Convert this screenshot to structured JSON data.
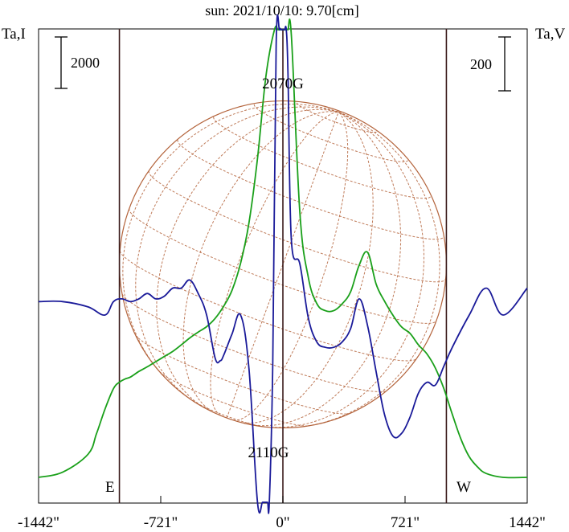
{
  "chart_data": {
    "type": "line",
    "title": "sun: 2021/10/10: 9.70[cm]",
    "y_left_label": "Ta,I",
    "y_right_label": "Ta,V",
    "x_ticks": [
      "-1442\"",
      "-721\"",
      "0\"",
      "721\"",
      "1442\""
    ],
    "x_tick_values": [
      -1442,
      -721,
      0,
      721,
      1442
    ],
    "xlim": [
      -1442,
      1442
    ],
    "scale_left_label": "2000",
    "scale_right_label": "200",
    "limb_labels": {
      "east": "E",
      "west": "W"
    },
    "limb_positions": [
      -965,
      965
    ],
    "annotations": [
      {
        "text": "2070G",
        "x": 10
      },
      {
        "text": "2110G",
        "x": -80
      }
    ],
    "disk": {
      "center_x": 0,
      "radius": 965
    },
    "colors": {
      "stokes_i": "#1aa01a",
      "stokes_v": "#1a1a99",
      "disk": "#b4643c",
      "limb_lines": "#3a1a1a",
      "title": "#1a1a80"
    },
    "series": [
      {
        "key": "stokes_i",
        "x": [
          -1442,
          -1300,
          -1150,
          -1100,
          -1050,
          -1000,
          -965,
          -930,
          -900,
          -850,
          -800,
          -750,
          -700,
          -650,
          -600,
          -550,
          -500,
          -450,
          -400,
          -350,
          -300,
          -250,
          -200,
          -150,
          -100,
          -50,
          -30,
          -20,
          -10,
          0,
          10,
          20,
          30,
          50,
          100,
          150,
          200,
          250,
          300,
          350,
          400,
          450,
          500,
          550,
          600,
          650,
          700,
          750,
          800,
          850,
          900,
          950,
          1000,
          1050,
          1100,
          1150,
          1200,
          1300,
          1442
        ],
        "y": [
          0,
          200,
          900,
          1700,
          2650,
          3450,
          3700,
          3830,
          3900,
          4120,
          4300,
          4500,
          4700,
          4900,
          5150,
          5420,
          5650,
          5860,
          6180,
          6650,
          7280,
          8320,
          9900,
          12400,
          15600,
          20500,
          25300,
          29000,
          30200,
          30300,
          29700,
          27000,
          23800,
          17200,
          10300,
          7780,
          6760,
          6480,
          6480,
          6750,
          7220,
          8250,
          8750,
          7520,
          6850,
          6300,
          5850,
          5600,
          5150,
          4800,
          4250,
          3450,
          2450,
          1500,
          800,
          400,
          150,
          0,
          0
        ]
      },
      {
        "key": "stokes_v",
        "x": [
          -1442,
          -1300,
          -1150,
          -1050,
          -1000,
          -950,
          -900,
          -850,
          -800,
          -750,
          -700,
          -650,
          -600,
          -550,
          -500,
          -450,
          -400,
          -370,
          -350,
          -300,
          -250,
          -200,
          -150,
          -120,
          -100,
          -90,
          -80,
          -60,
          -40,
          -20,
          -10,
          0,
          10,
          20,
          30,
          50,
          100,
          150,
          200,
          250,
          300,
          350,
          400,
          450,
          500,
          550,
          600,
          650,
          700,
          750,
          800,
          850,
          900,
          950,
          1000,
          1100,
          1200,
          1300,
          1442
        ],
        "y": [
          50,
          50,
          30,
          0,
          50,
          60,
          50,
          60,
          80,
          60,
          70,
          100,
          100,
          130,
          80,
          0,
          -160,
          -170,
          -150,
          -70,
          0,
          -200,
          -700,
          -1100,
          -1250,
          -1250,
          -900,
          -180,
          1000,
          1900,
          2150,
          2260,
          1950,
          1400,
          900,
          280,
          190,
          -10,
          -100,
          -120,
          -120,
          -100,
          -50,
          60,
          -40,
          -210,
          -370,
          -450,
          -440,
          -380,
          -290,
          -250,
          -260,
          -190,
          -120,
          0,
          100,
          0,
          100
        ]
      }
    ]
  }
}
